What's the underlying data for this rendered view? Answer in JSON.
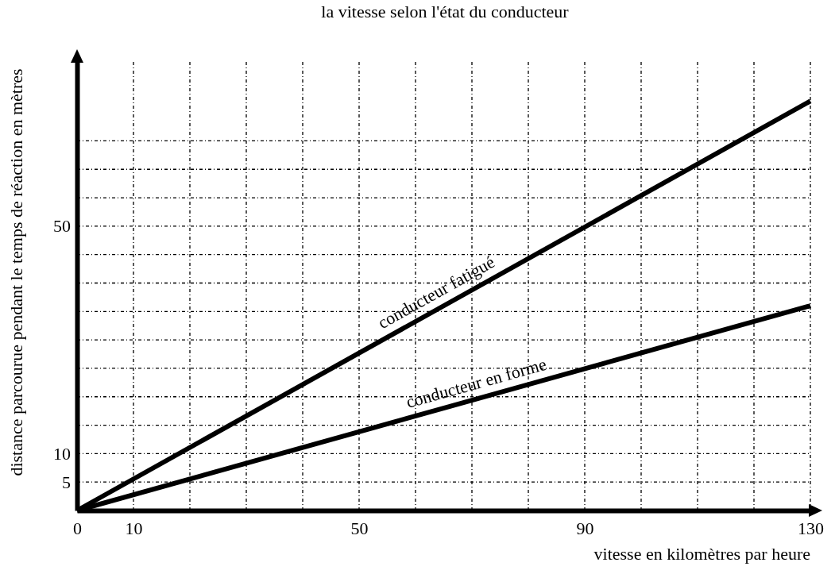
{
  "chart_data": {
    "type": "line",
    "title": "la vitesse selon l'état du conducteur",
    "xlabel": "vitesse en kilomètres par heure",
    "ylabel": "distance parcourue pendant le temps de réaction en mètres",
    "x": [
      0,
      130
    ],
    "series": [
      {
        "name": "conducteur fatigué",
        "color": "#000000",
        "values": [
          0,
          72
        ]
      },
      {
        "name": "conducteur en forme",
        "color": "#000000",
        "values": [
          0,
          36
        ]
      }
    ],
    "xlim": [
      0,
      130
    ],
    "ylim": [
      0,
      80
    ],
    "xticks": [
      0,
      {
        "value": 10,
        "label": "10"
      },
      {
        "value": 20,
        "label": null
      },
      {
        "value": 30,
        "label": null
      },
      {
        "value": 40,
        "label": null
      },
      50,
      {
        "value": 60,
        "label": null
      },
      {
        "value": 70,
        "label": null
      },
      {
        "value": 80,
        "label": null
      },
      90,
      {
        "value": 100,
        "label": null
      },
      {
        "value": 110,
        "label": null
      },
      {
        "value": 120,
        "label": null
      },
      130
    ],
    "yticks": [
      {
        "value": 0,
        "label": null
      },
      5,
      10,
      {
        "value": 15,
        "label": null
      },
      {
        "value": 20,
        "label": null
      },
      {
        "value": 25,
        "label": null
      },
      {
        "value": 30,
        "label": null
      },
      {
        "value": 35,
        "label": null
      },
      {
        "value": 40,
        "label": null
      },
      {
        "value": 45,
        "label": null
      },
      50,
      {
        "value": 55,
        "label": null
      },
      {
        "value": 60,
        "label": null
      },
      {
        "value": 65,
        "label": null
      }
    ],
    "grid": true,
    "marker": "none",
    "line_style": "solid"
  }
}
